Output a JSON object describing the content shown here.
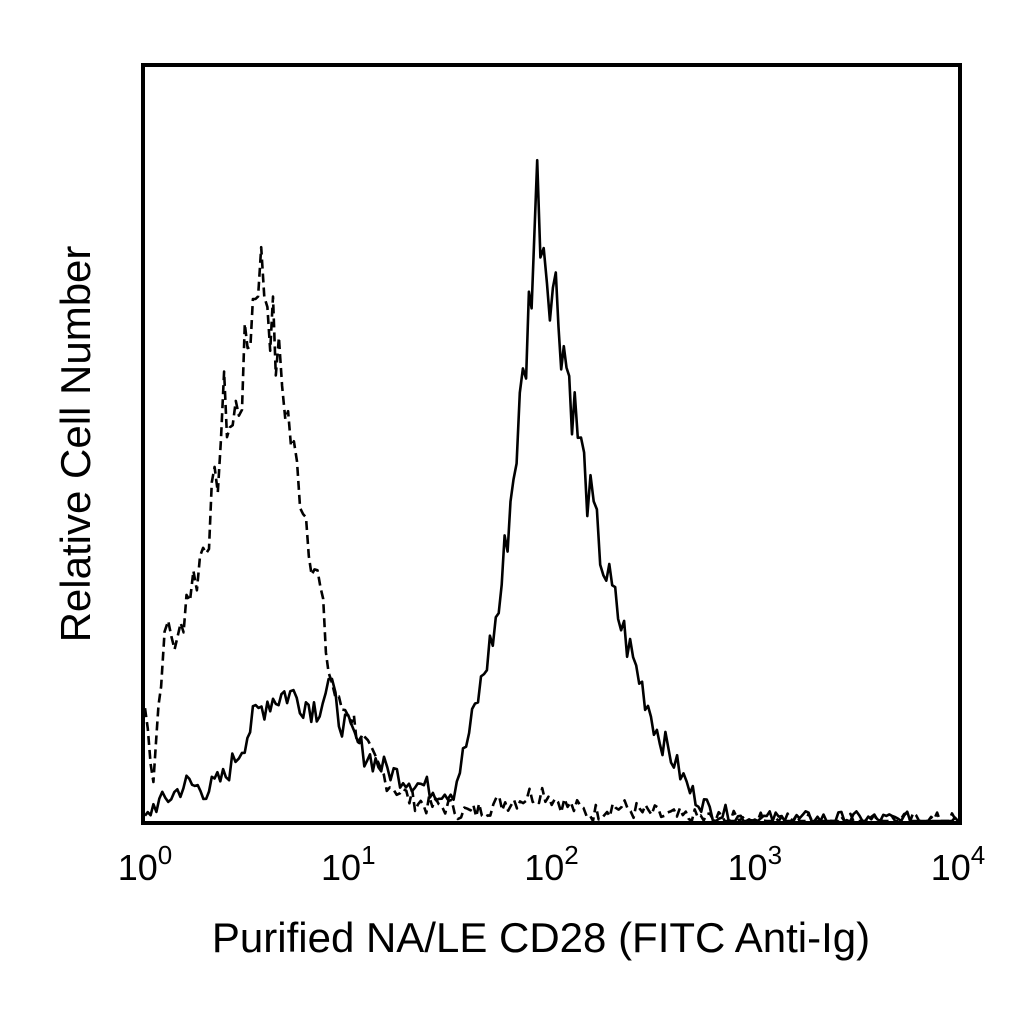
{
  "chart_data": {
    "type": "line",
    "xlabel": "Purified NA/LE CD28 (FITC Anti-Ig)",
    "ylabel": "Relative Cell Number",
    "x_scale": "log",
    "xlim": [
      1,
      10000
    ],
    "ylim": [
      0,
      1
    ],
    "grid": false,
    "legend": "none",
    "x_ticks": [
      {
        "value": 1,
        "base": "10",
        "exp": "0"
      },
      {
        "value": 10,
        "base": "10",
        "exp": "1"
      },
      {
        "value": 100,
        "base": "10",
        "exp": "2"
      },
      {
        "value": 1000,
        "base": "10",
        "exp": "3"
      },
      {
        "value": 10000,
        "base": "10",
        "exp": "4"
      }
    ],
    "series": [
      {
        "style": "dashed",
        "color": "#000000",
        "x": [
          1.0,
          1.1,
          1.2,
          1.3,
          1.45,
          1.6,
          1.8,
          2.0,
          2.2,
          2.45,
          2.7,
          3.0,
          3.3,
          3.6,
          4.0,
          4.4,
          4.9,
          5.4,
          6.0,
          6.6,
          7.3,
          8.0,
          9.0,
          10.0,
          11.0,
          12.5,
          14.0,
          16.0,
          18.0,
          20.0,
          25.0,
          30.0,
          40.0,
          50.0,
          70.0,
          90.0,
          120.0,
          160.0,
          200.0,
          300.0,
          400.0,
          600.0,
          1000.0,
          10000.0
        ],
        "y": [
          0.15,
          0.06,
          0.2,
          0.26,
          0.23,
          0.3,
          0.33,
          0.38,
          0.43,
          0.55,
          0.52,
          0.58,
          0.66,
          0.74,
          0.7,
          0.62,
          0.56,
          0.48,
          0.43,
          0.36,
          0.3,
          0.2,
          0.15,
          0.15,
          0.12,
          0.09,
          0.07,
          0.05,
          0.04,
          0.03,
          0.02,
          0.02,
          0.01,
          0.02,
          0.03,
          0.04,
          0.02,
          0.01,
          0.02,
          0.01,
          0.005,
          0.003,
          0.0,
          0.0
        ]
      },
      {
        "style": "solid",
        "color": "#000000",
        "x": [
          1.0,
          1.1,
          1.3,
          1.6,
          2.0,
          2.5,
          3.0,
          3.5,
          4.0,
          5.0,
          6.0,
          7.0,
          8.0,
          9.0,
          10.0,
          12.0,
          15.0,
          18.0,
          22.0,
          27.0,
          33.0,
          38.0,
          45.0,
          55.0,
          65.0,
          75.0,
          85.0,
          95.0,
          105.0,
          115.0,
          130.0,
          150.0,
          180.0,
          220.0,
          270.0,
          330.0,
          400.0,
          480.0,
          600.0,
          800.0,
          1000.0,
          10000.0
        ],
        "y": [
          0.0,
          0.02,
          0.03,
          0.05,
          0.04,
          0.06,
          0.1,
          0.14,
          0.16,
          0.17,
          0.16,
          0.15,
          0.18,
          0.14,
          0.12,
          0.09,
          0.07,
          0.06,
          0.05,
          0.04,
          0.04,
          0.1,
          0.18,
          0.28,
          0.46,
          0.62,
          0.84,
          0.74,
          0.7,
          0.63,
          0.54,
          0.44,
          0.34,
          0.26,
          0.19,
          0.12,
          0.08,
          0.04,
          0.015,
          0.005,
          0.002,
          0.0
        ]
      }
    ]
  }
}
